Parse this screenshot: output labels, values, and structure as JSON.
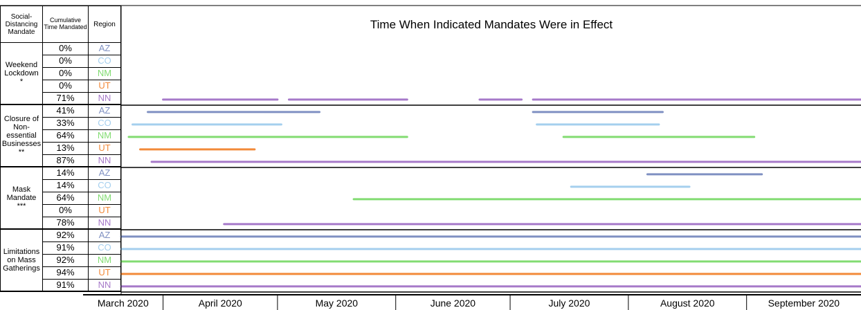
{
  "chart_data": {
    "type": "timeline",
    "title": "Time When Indicated Mandates Were in Effect",
    "headers": [
      "Social-Distancing Mandate",
      "Cumulative Time Mandated",
      "Region"
    ],
    "months": [
      "March 2020",
      "April 2020",
      "May 2020",
      "June 2020",
      "July 2020",
      "August 2020",
      "September 2020"
    ],
    "xlim": [
      20,
      214
    ],
    "xticks": [
      31,
      61,
      92,
      122,
      153,
      184
    ],
    "region_colors": {
      "AZ": "#7f90c2",
      "CO": "#a5cfee",
      "NM": "#82dc72",
      "UT": "#f28a3a",
      "NN": "#a679c9"
    },
    "groups": [
      {
        "name": "Weekend Lockdown *",
        "rows": [
          {
            "pct": "0%",
            "region": "AZ",
            "segments": []
          },
          {
            "pct": "0%",
            "region": "CO",
            "segments": []
          },
          {
            "pct": "0%",
            "region": "NM",
            "segments": []
          },
          {
            "pct": "0%",
            "region": "UT",
            "segments": []
          },
          {
            "pct": "71%",
            "region": "NN",
            "segments": [
              [
                31,
                61
              ],
              [
                64,
                95
              ],
              [
                114,
                125
              ],
              [
                128,
                214
              ]
            ]
          }
        ]
      },
      {
        "name": "Closure of Non-essential Businesses **",
        "rows": [
          {
            "pct": "41%",
            "region": "AZ",
            "segments": [
              [
                27,
                72
              ],
              [
                128,
                162
              ]
            ]
          },
          {
            "pct": "33%",
            "region": "CO",
            "segments": [
              [
                23,
                62
              ],
              [
                129,
                161
              ]
            ]
          },
          {
            "pct": "64%",
            "region": "NM",
            "segments": [
              [
                22,
                95
              ],
              [
                136,
                186
              ]
            ]
          },
          {
            "pct": "13%",
            "region": "UT",
            "segments": [
              [
                25,
                55
              ]
            ]
          },
          {
            "pct": "87%",
            "region": "NN",
            "segments": [
              [
                28,
                214
              ]
            ]
          }
        ]
      },
      {
        "name": "Mask Mandate ***",
        "rows": [
          {
            "pct": "14%",
            "region": "AZ",
            "segments": [
              [
                158,
                188
              ]
            ]
          },
          {
            "pct": "14%",
            "region": "CO",
            "segments": [
              [
                138,
                169
              ]
            ]
          },
          {
            "pct": "64%",
            "region": "NM",
            "segments": [
              [
                81,
                214
              ]
            ]
          },
          {
            "pct": "0%",
            "region": "UT",
            "segments": []
          },
          {
            "pct": "78%",
            "region": "NN",
            "segments": [
              [
                47,
                214
              ]
            ]
          }
        ]
      },
      {
        "name": "Limitations on Mass Gatherings",
        "rows": [
          {
            "pct": "92%",
            "region": "AZ",
            "segments": [
              [
                20,
                214
              ]
            ]
          },
          {
            "pct": "91%",
            "region": "CO",
            "segments": [
              [
                20,
                214
              ]
            ]
          },
          {
            "pct": "92%",
            "region": "NM",
            "segments": [
              [
                20,
                214
              ]
            ]
          },
          {
            "pct": "94%",
            "region": "UT",
            "segments": [
              [
                20,
                214
              ]
            ]
          },
          {
            "pct": "91%",
            "region": "NN",
            "segments": [
              [
                20,
                214
              ]
            ]
          }
        ]
      }
    ]
  }
}
